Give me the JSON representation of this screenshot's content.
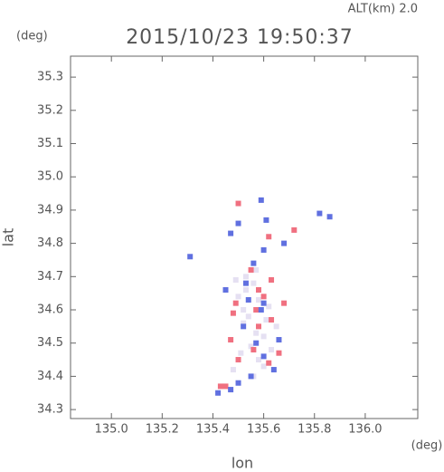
{
  "header": {
    "altitude": "ALT(km) 2.0",
    "y_unit": "(deg)",
    "x_unit": "(deg)"
  },
  "chart_data": {
    "type": "scatter",
    "title": "2015/10/23 19:50:37",
    "x_label": "lon",
    "y_label": "lat",
    "xlim": [
      134.839,
      136.207
    ],
    "ylim": [
      34.273,
      35.363
    ],
    "xticks": [
      {
        "value": 135,
        "label": "135.0"
      },
      135.2,
      135.4,
      135.6,
      135.8,
      {
        "value": 136,
        "label": "136.0"
      }
    ],
    "yticks": [
      34.3,
      34.4,
      34.5,
      34.6,
      34.7,
      34.8,
      34.9,
      {
        "value": 35,
        "label": "35.0"
      },
      35.1,
      35.2,
      35.3
    ],
    "grid": false,
    "series": [
      {
        "color": "#e5e0f2",
        "x": [
          135.53,
          135.56,
          135.5,
          135.58,
          135.62,
          135.54,
          135.52,
          135.57,
          135.6,
          135.55,
          135.51,
          135.58,
          135.63,
          135.48,
          135.56,
          135.6,
          135.53,
          135.65,
          135.49,
          135.57,
          135.52,
          135.61
        ],
        "values": [
          34.7,
          34.68,
          34.64,
          34.63,
          34.61,
          34.58,
          34.56,
          34.53,
          34.52,
          34.49,
          34.47,
          34.45,
          34.48,
          34.42,
          34.4,
          34.43,
          34.66,
          34.55,
          34.69,
          34.72,
          34.6,
          34.57
        ]
      },
      {
        "color": "#f07080",
        "x": [
          135.5,
          135.62,
          135.72,
          135.58,
          135.6,
          135.55,
          135.49,
          135.63,
          135.58,
          135.48,
          135.66,
          135.62,
          135.45,
          135.43,
          135.56,
          135.5,
          135.68,
          135.63,
          135.57,
          135.47
        ],
        "values": [
          34.92,
          34.82,
          34.84,
          34.66,
          34.64,
          34.72,
          34.62,
          34.57,
          34.55,
          34.59,
          34.47,
          34.44,
          34.37,
          34.37,
          34.48,
          34.45,
          34.62,
          34.69,
          34.6,
          34.51
        ]
      },
      {
        "color": "#6070e0",
        "x": [
          135.59,
          135.5,
          135.47,
          135.6,
          135.82,
          135.86,
          135.68,
          135.53,
          135.54,
          135.6,
          135.45,
          135.52,
          135.57,
          135.6,
          135.64,
          135.55,
          135.5,
          135.47,
          135.42,
          135.59,
          135.31,
          135.66,
          135.56,
          135.61
        ],
        "values": [
          34.93,
          34.86,
          34.83,
          34.78,
          34.89,
          34.88,
          34.8,
          34.68,
          34.63,
          34.62,
          34.66,
          34.55,
          34.5,
          34.46,
          34.42,
          34.4,
          34.38,
          34.36,
          34.35,
          34.6,
          34.76,
          34.51,
          34.74,
          34.87
        ]
      }
    ]
  }
}
